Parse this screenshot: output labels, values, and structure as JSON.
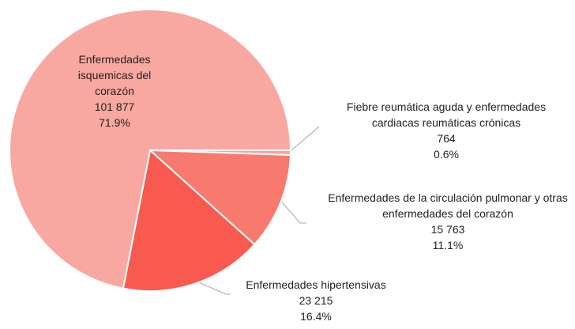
{
  "chart_data": {
    "type": "pie",
    "categories": [
      "Fiebre reumática aguda y enfermedades cardiacas reumáticas crónicas",
      "Enfermedades de la circulación pulmonar y otras enfermedades del corazón",
      "Enfermedades hipertensivas",
      "Enfermedades isquemicas del corazón"
    ],
    "values": [
      764,
      15763,
      23215,
      101877
    ],
    "value_labels": [
      "764",
      "15 763",
      "23 215",
      "101 877"
    ],
    "percentages": [
      0.6,
      11.1,
      16.4,
      71.9
    ],
    "percentage_labels": [
      "0.6%",
      "11.1%",
      "16.4%",
      "71.9%"
    ],
    "colors": [
      "#f9a29b",
      "#f87a6f",
      "#f85a50",
      "#f9a7a1"
    ]
  }
}
